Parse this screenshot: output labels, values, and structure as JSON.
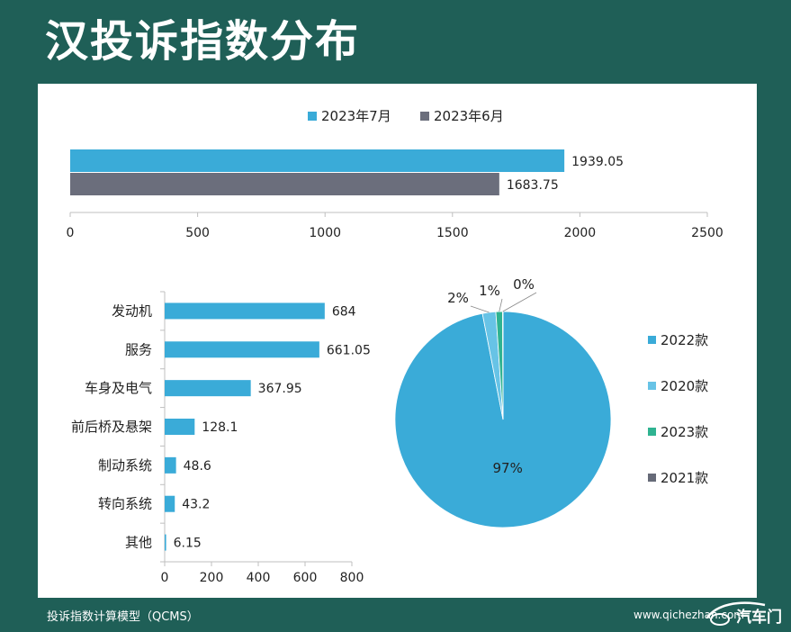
{
  "title": "汉投诉指数分布",
  "footer": {
    "model": "投诉指数计算模型（QCMS）",
    "website": "www.qichezhan.com",
    "logo_text": "汽车门"
  },
  "colors": {
    "background": "#1f5f57",
    "primary": "#3aabd8",
    "secondary": "#6b6e7c",
    "light_blue": "#67c3e6",
    "green": "#2fb391",
    "dark": "#666a78"
  },
  "chart_data": [
    {
      "type": "bar",
      "orientation": "horizontal",
      "title": "",
      "series": [
        {
          "name": "2023年7月",
          "values": [
            1939.05
          ],
          "color": "#3aabd8"
        },
        {
          "name": "2023年6月",
          "values": [
            1683.75
          ],
          "color": "#6b6e7c"
        }
      ],
      "value_labels": [
        "1939.05",
        "1683.75"
      ],
      "xlim": [
        0,
        2500
      ],
      "ticks": [
        0,
        500,
        1000,
        1500,
        2000,
        2500
      ],
      "tick_labels": [
        "0",
        "500",
        "1000",
        "1500",
        "2000",
        "2500"
      ],
      "legend": "top"
    },
    {
      "type": "bar",
      "orientation": "horizontal",
      "categories": [
        "发动机",
        "服务",
        "车身及电气",
        "前后桥及悬架",
        "制动系统",
        "转向系统",
        "其他"
      ],
      "values": [
        684,
        661.05,
        367.95,
        128.1,
        48.6,
        43.2,
        6.15
      ],
      "value_labels": [
        "684",
        "661.05",
        "367.95",
        "128.1",
        "48.6",
        "43.2",
        "6.15"
      ],
      "xlim": [
        0,
        800
      ],
      "ticks": [
        0,
        200,
        400,
        600,
        800
      ],
      "tick_labels": [
        "0",
        "200",
        "400",
        "600",
        "800"
      ],
      "color": "#3aabd8"
    },
    {
      "type": "pie",
      "labels": [
        "2022款",
        "2020款",
        "2023款",
        "2021款"
      ],
      "values": [
        97,
        2,
        1,
        0
      ],
      "value_labels": [
        "97%",
        "2%",
        "1%",
        "0%"
      ],
      "colors": [
        "#3aabd8",
        "#67c3e6",
        "#2fb391",
        "#666a78"
      ],
      "legend": "right"
    }
  ]
}
